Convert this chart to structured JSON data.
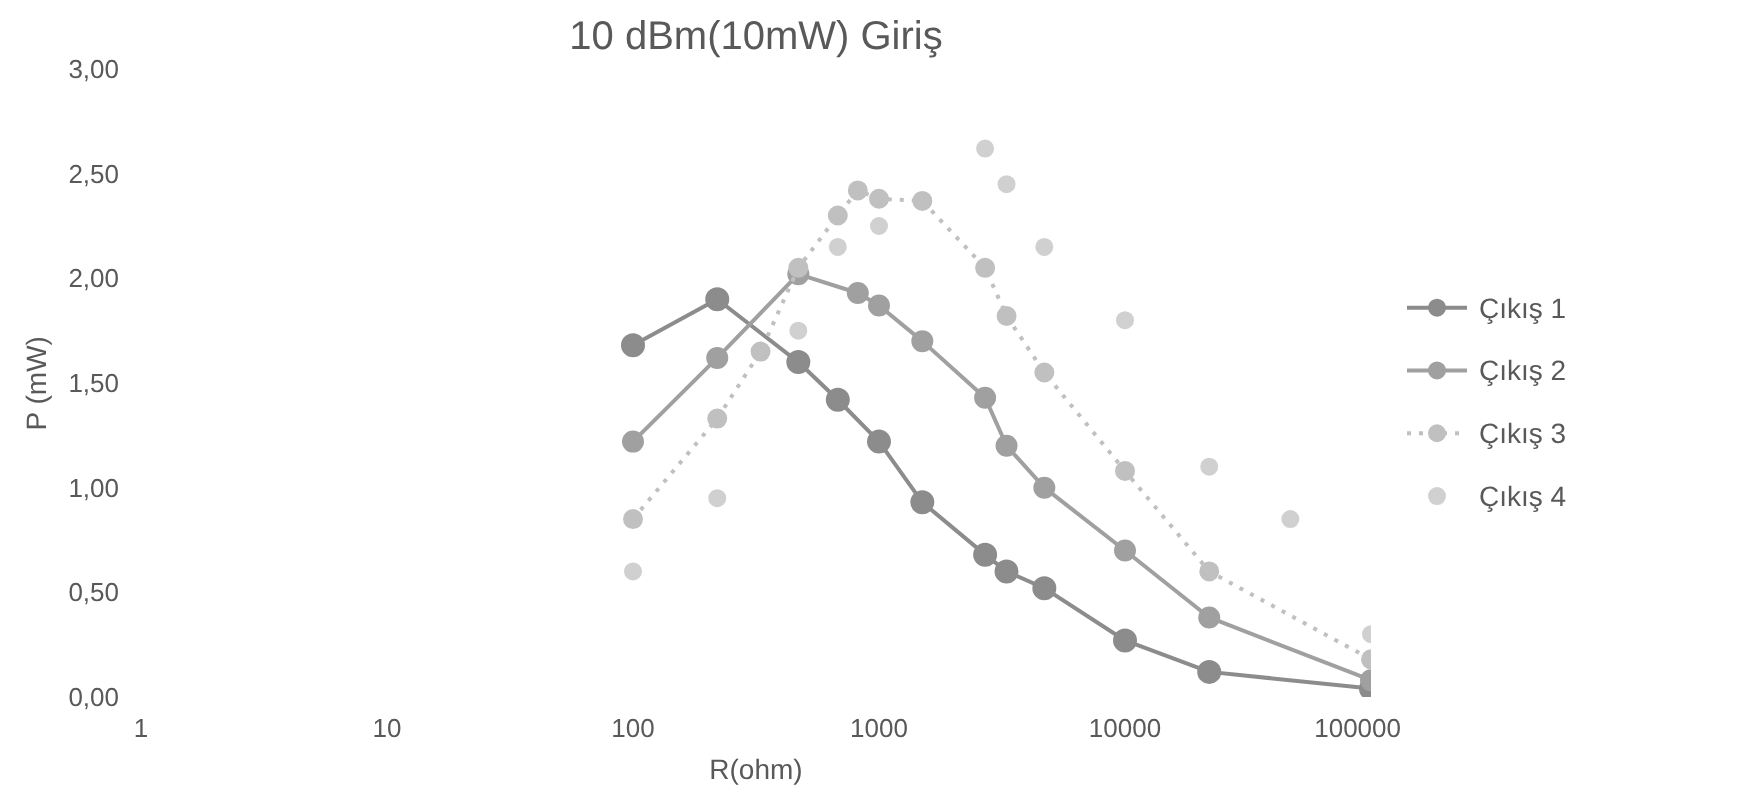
{
  "chart_data": {
    "type": "line",
    "title": "10 dBm(10mW) Giriş",
    "xlabel": "R(ohm)",
    "ylabel": "P (mW)",
    "log": "x",
    "xlim": [
      1,
      100000
    ],
    "xticks": [
      1,
      10,
      100,
      1000,
      10000,
      100000
    ],
    "ylim": [
      0,
      3
    ],
    "yticks": [
      {
        "value": 0,
        "label": "0,00"
      },
      {
        "value": 0.5,
        "label": "0,50"
      },
      {
        "value": 1,
        "label": "1,00"
      },
      {
        "value": 1.5,
        "label": "1,50"
      },
      {
        "value": 2,
        "label": "2,00"
      },
      {
        "value": 2.5,
        "label": "2,50"
      },
      {
        "value": 3,
        "label": "3,00"
      }
    ],
    "grid": false,
    "legend": "right",
    "marker": "circle",
    "series": [
      {
        "name": "Çıkış 1",
        "color": "#8c8c8c",
        "line_style": "solid",
        "x": [
          100,
          220,
          470,
          680,
          1000,
          1500,
          2700,
          3300,
          4700,
          10000,
          22000,
          100000
        ],
        "values": [
          1.68,
          1.9,
          1.6,
          1.42,
          1.22,
          0.93,
          0.68,
          0.6,
          0.52,
          0.27,
          0.12,
          0.04
        ]
      },
      {
        "name": "Çıkış 2",
        "color": "#a0a0a0",
        "line_style": "solid",
        "x": [
          100,
          220,
          470,
          820,
          1000,
          1500,
          2700,
          3300,
          4700,
          10000,
          22000,
          100000
        ],
        "values": [
          1.22,
          1.62,
          2.02,
          1.93,
          1.87,
          1.7,
          1.43,
          1.2,
          1.0,
          0.7,
          0.38,
          0.08
        ]
      },
      {
        "name": "Çıkış 3",
        "color": "#c0c0c0",
        "line_style": "dotted",
        "x": [
          100,
          220,
          330,
          470,
          680,
          820,
          1000,
          1500,
          2700,
          3300,
          4700,
          10000,
          22000,
          100000
        ],
        "values": [
          0.85,
          1.33,
          1.65,
          2.05,
          2.3,
          2.42,
          2.38,
          2.37,
          2.05,
          1.82,
          1.55,
          1.08,
          0.6,
          0.18
        ]
      },
      {
        "name": "Çıkış 4",
        "color": "#d0d0d0",
        "type": "scatter",
        "x": [
          100,
          220,
          470,
          680,
          1000,
          2700,
          3300,
          4700,
          10000,
          22000,
          47000,
          100000
        ],
        "values": [
          0.6,
          0.95,
          1.75,
          2.15,
          2.25,
          2.62,
          2.45,
          2.15,
          1.8,
          1.1,
          0.85,
          0.3
        ]
      }
    ]
  }
}
